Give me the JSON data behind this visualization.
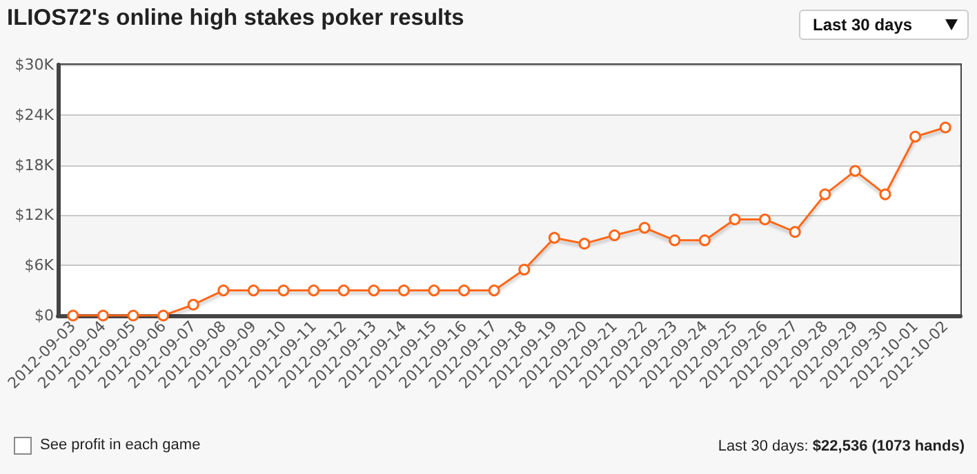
{
  "chart_data": {
    "type": "line",
    "title": "ILIOS72's online high stakes poker results",
    "annotations": [
      "Last 30 days",
      "See profit in each game",
      "Last 30 days: $22,536 (1073 hands)"
    ],
    "categories": [
      "2012-09-03",
      "2012-09-04",
      "2012-09-05",
      "2012-09-06",
      "2012-09-07",
      "2012-09-08",
      "2012-09-09",
      "2012-09-10",
      "2012-09-11",
      "2012-09-12",
      "2012-09-13",
      "2012-09-14",
      "2012-09-15",
      "2012-09-16",
      "2012-09-17",
      "2012-09-18",
      "2012-09-19",
      "2012-09-20",
      "2012-09-21",
      "2012-09-22",
      "2012-09-23",
      "2012-09-24",
      "2012-09-25",
      "2012-09-26",
      "2012-09-27",
      "2012-09-28",
      "2012-09-29",
      "2012-09-30",
      "2012-10-01",
      "2012-10-02"
    ],
    "series": [
      {
        "color": "#ff6619",
        "values": [
          0,
          0,
          0,
          0,
          1300,
          3000,
          3000,
          3000,
          3000,
          3000,
          3000,
          3000,
          3000,
          3000,
          3000,
          5500,
          9300,
          8600,
          9600,
          10500,
          9000,
          9000,
          11500,
          11500,
          10000,
          14500,
          17300,
          14500,
          21400,
          22500
        ]
      }
    ],
    "ylim": [
      0,
      30000
    ],
    "yticks": [
      {
        "value": 0,
        "label": "$0"
      },
      {
        "value": 6000,
        "label": "$6K"
      },
      {
        "value": 12000,
        "label": "$12K"
      },
      {
        "value": 18000,
        "label": "$18K"
      },
      {
        "value": 24000,
        "label": "$24K"
      },
      {
        "value": 30000,
        "label": "$30K"
      }
    ],
    "grid": "y",
    "marker": "circle",
    "line_style": "solid"
  }
}
